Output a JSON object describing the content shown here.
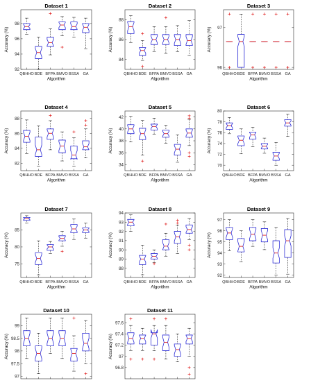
{
  "figure": {
    "colors": {
      "box": "#2b2bd6",
      "median": "#e02020",
      "outlier": "#e02020",
      "whisker": "#000000",
      "axis": "#262626"
    }
  },
  "chart_data": [
    {
      "type": "box",
      "title": "Dataset 1",
      "xlabel": "Algorithm",
      "ylabel": "Accuracy (%)",
      "categories": [
        "QBHHO",
        "BDE",
        "BFPA",
        "BMVO",
        "BSSA",
        "GA"
      ],
      "ylim": [
        92,
        99.8
      ],
      "yticks": [
        92,
        94,
        96,
        98
      ],
      "notched": true,
      "boxes": [
        {
          "min": 96.6,
          "q1": 97.2,
          "median": 97.6,
          "q3": 98.0,
          "max": 98.7,
          "outliers": []
        },
        {
          "min": 92.0,
          "q1": 93.4,
          "median": 94.2,
          "q3": 95.0,
          "max": 96.2,
          "outliers": []
        },
        {
          "min": 93.9,
          "q1": 95.0,
          "median": 95.5,
          "q3": 96.2,
          "max": 97.3,
          "outliers": [
            99.3
          ]
        },
        {
          "min": 96.4,
          "q1": 97.2,
          "median": 97.8,
          "q3": 98.2,
          "max": 98.9,
          "outliers": [
            94.9
          ]
        },
        {
          "min": 96.2,
          "q1": 97.2,
          "median": 97.6,
          "q3": 98.2,
          "max": 98.8,
          "outliers": []
        },
        {
          "min": 94.7,
          "q1": 96.8,
          "median": 97.5,
          "q3": 98.0,
          "max": 98.7,
          "outliers": []
        }
      ]
    },
    {
      "type": "box",
      "title": "Dataset 2",
      "xlabel": "Algorithm",
      "ylabel": "Accuracy (%)",
      "categories": [
        "QBHHO",
        "BDE",
        "BFPA",
        "BMVO",
        "BSSA",
        "GA"
      ],
      "ylim": [
        83,
        89
      ],
      "yticks": [
        84,
        86,
        88
      ],
      "notched": true,
      "boxes": [
        {
          "min": 85.7,
          "q1": 86.6,
          "median": 87.3,
          "q3": 87.8,
          "max": 88.4,
          "outliers": []
        },
        {
          "min": 83.9,
          "q1": 84.4,
          "median": 84.9,
          "q3": 85.2,
          "max": 85.9,
          "outliers": [
            86.6,
            83.3
          ]
        },
        {
          "min": 84.8,
          "q1": 85.5,
          "median": 86.0,
          "q3": 86.5,
          "max": 87.3,
          "outliers": []
        },
        {
          "min": 84.6,
          "q1": 85.5,
          "median": 86.0,
          "q3": 86.5,
          "max": 87.3,
          "outliers": [
            88.2
          ]
        },
        {
          "min": 84.8,
          "q1": 85.4,
          "median": 86.0,
          "q3": 86.5,
          "max": 87.4,
          "outliers": []
        },
        {
          "min": 84.4,
          "q1": 85.4,
          "median": 85.9,
          "q3": 86.5,
          "max": 87.9,
          "outliers": []
        }
      ]
    },
    {
      "type": "box",
      "title": "Dataset 3",
      "xlabel": "Algorithm",
      "ylabel": "Accuracy (%)",
      "categories": [
        "QBHHO",
        "BDE",
        "BFPA",
        "BMVO",
        "BSSA",
        "GA"
      ],
      "ylim": [
        95.95,
        97.45
      ],
      "yticks": [
        96,
        97
      ],
      "notched": true,
      "boxes": [
        {
          "min": 96.65,
          "q1": 96.65,
          "median": 96.65,
          "q3": 96.65,
          "max": 96.65,
          "outliers": [
            97.34,
            96.0
          ]
        },
        {
          "min": 96.0,
          "q1": 96.0,
          "median": 96.65,
          "q3": 96.83,
          "max": 97.34,
          "outliers": []
        },
        {
          "min": 96.65,
          "q1": 96.65,
          "median": 96.65,
          "q3": 96.65,
          "max": 96.65,
          "outliers": [
            97.34,
            96.0
          ]
        },
        {
          "min": 96.65,
          "q1": 96.65,
          "median": 96.65,
          "q3": 96.65,
          "max": 96.65,
          "outliers": [
            97.34,
            96.0
          ]
        },
        {
          "min": 96.65,
          "q1": 96.65,
          "median": 96.65,
          "q3": 96.65,
          "max": 96.65,
          "outliers": [
            97.34,
            96.0
          ]
        },
        {
          "min": 96.65,
          "q1": 96.65,
          "median": 96.65,
          "q3": 96.65,
          "max": 96.65,
          "outliers": [
            97.34,
            96.0
          ]
        }
      ]
    },
    {
      "type": "box",
      "title": "Dataset 4",
      "xlabel": "Algorithm",
      "ylabel": "Accuracy (%)",
      "categories": [
        "QBHHO",
        "BDE",
        "BFPA",
        "BMVO",
        "BSSA",
        "GA"
      ],
      "ylim": [
        81,
        89
      ],
      "yticks": [
        82,
        84,
        86,
        88
      ],
      "notched": true,
      "boxes": [
        {
          "min": 83.3,
          "q1": 84.8,
          "median": 85.6,
          "q3": 86.4,
          "max": 87.8,
          "outliers": []
        },
        {
          "min": 81.6,
          "q1": 82.9,
          "median": 83.8,
          "q3": 85.5,
          "max": 87.0,
          "outliers": []
        },
        {
          "min": 83.8,
          "q1": 85.2,
          "median": 86.0,
          "q3": 86.6,
          "max": 87.7,
          "outliers": [
            88.4
          ]
        },
        {
          "min": 82.3,
          "q1": 83.4,
          "median": 84.3,
          "q3": 85.1,
          "max": 86.2,
          "outliers": []
        },
        {
          "min": 81.6,
          "q1": 82.6,
          "median": 83.1,
          "q3": 84.3,
          "max": 85.4,
          "outliers": [
            86.2
          ]
        },
        {
          "min": 82.7,
          "q1": 83.8,
          "median": 84.2,
          "q3": 85.0,
          "max": 86.6,
          "outliers": [
            87.7,
            87.1
          ]
        }
      ]
    },
    {
      "type": "box",
      "title": "Dataset 5",
      "xlabel": "Algorithm",
      "ylabel": "Accuracy (%)",
      "categories": [
        "QBHHO",
        "BDE",
        "BFPA",
        "BMVO",
        "BSSA",
        "GA"
      ],
      "ylim": [
        33,
        43
      ],
      "yticks": [
        34,
        36,
        38,
        40,
        42
      ],
      "notched": true,
      "boxes": [
        {
          "min": 37.8,
          "q1": 39.2,
          "median": 40.0,
          "q3": 40.7,
          "max": 42.1,
          "outliers": []
        },
        {
          "min": 35.6,
          "q1": 38.2,
          "median": 39.2,
          "q3": 40.1,
          "max": 41.4,
          "outliers": [
            34.6
          ]
        },
        {
          "min": 39.1,
          "q1": 39.8,
          "median": 40.4,
          "q3": 40.8,
          "max": 41.8,
          "outliers": []
        },
        {
          "min": 37.6,
          "q1": 38.6,
          "median": 39.2,
          "q3": 39.8,
          "max": 40.6,
          "outliers": []
        },
        {
          "min": 34.4,
          "q1": 35.6,
          "median": 36.6,
          "q3": 37.4,
          "max": 39.0,
          "outliers": []
        },
        {
          "min": 37.2,
          "q1": 38.6,
          "median": 39.3,
          "q3": 40.0,
          "max": 41.6,
          "outliers": [
            42.2,
            41.8,
            36.0,
            35.4
          ]
        }
      ]
    },
    {
      "type": "box",
      "title": "Dataset 6",
      "xlabel": "Algorithm",
      "ylabel": "Accuracy (%)",
      "categories": [
        "QBHHO",
        "BDE",
        "BFPA",
        "BMVO",
        "BSSA",
        "GA"
      ],
      "ylim": [
        69,
        80
      ],
      "yticks": [
        70,
        72,
        74,
        76,
        78,
        80
      ],
      "notched": true,
      "boxes": [
        {
          "min": 75.8,
          "q1": 76.6,
          "median": 77.3,
          "q3": 77.8,
          "max": 78.8,
          "outliers": []
        },
        {
          "min": 72.1,
          "q1": 73.6,
          "median": 74.6,
          "q3": 75.4,
          "max": 76.7,
          "outliers": []
        },
        {
          "min": 73.4,
          "q1": 74.8,
          "median": 75.6,
          "q3": 76.1,
          "max": 77.0,
          "outliers": []
        },
        {
          "min": 72.2,
          "q1": 73.0,
          "median": 73.5,
          "q3": 74.0,
          "max": 75.0,
          "outliers": []
        },
        {
          "min": 70.0,
          "q1": 70.9,
          "median": 71.7,
          "q3": 72.4,
          "max": 74.2,
          "outliers": []
        },
        {
          "min": 75.3,
          "q1": 77.2,
          "median": 77.8,
          "q3": 78.4,
          "max": 79.4,
          "outliers": []
        }
      ]
    },
    {
      "type": "box",
      "title": "Dataset 7",
      "xlabel": "Algorithm",
      "ylabel": "Accuracy (%)",
      "categories": [
        "QBHHO",
        "BDE",
        "BFPA",
        "BMVO",
        "BSSA",
        "GA"
      ],
      "ylim": [
        71,
        90
      ],
      "yticks": [
        75,
        80,
        85
      ],
      "notched": true,
      "boxes": [
        {
          "min": 87.0,
          "q1": 87.8,
          "median": 88.3,
          "q3": 88.7,
          "max": 89.2,
          "outliers": []
        },
        {
          "min": 71.8,
          "q1": 74.8,
          "median": 76.6,
          "q3": 78.3,
          "max": 81.8,
          "outliers": []
        },
        {
          "min": 78.1,
          "q1": 79.0,
          "median": 80.0,
          "q3": 80.7,
          "max": 81.6,
          "outliers": []
        },
        {
          "min": 80.2,
          "q1": 81.8,
          "median": 82.5,
          "q3": 83.3,
          "max": 84.6,
          "outliers": [
            78.7
          ]
        },
        {
          "min": 82.2,
          "q1": 84.2,
          "median": 85.3,
          "q3": 86.6,
          "max": 88.2,
          "outliers": []
        },
        {
          "min": 82.6,
          "q1": 84.2,
          "median": 85.0,
          "q3": 85.6,
          "max": 87.0,
          "outliers": []
        }
      ]
    },
    {
      "type": "box",
      "title": "Dataset 8",
      "xlabel": "Algorithm",
      "ylabel": "Accuracy (%)",
      "categories": [
        "QBHHO",
        "BDE",
        "BFPA",
        "BMVO",
        "BSSA",
        "GA"
      ],
      "ylim": [
        87,
        94
      ],
      "yticks": [
        88,
        89,
        90,
        91,
        92,
        93,
        94
      ],
      "notched": true,
      "boxes": [
        {
          "min": 92.0,
          "q1": 92.6,
          "median": 93.0,
          "q3": 93.3,
          "max": 93.8,
          "outliers": []
        },
        {
          "min": 87.3,
          "q1": 88.4,
          "median": 89.0,
          "q3": 89.4,
          "max": 90.5,
          "outliers": []
        },
        {
          "min": 88.6,
          "q1": 89.0,
          "median": 89.3,
          "q3": 89.6,
          "max": 90.0,
          "outliers": [
            88.5
          ]
        },
        {
          "min": 89.3,
          "q1": 90.0,
          "median": 90.4,
          "q3": 91.1,
          "max": 91.8,
          "outliers": [
            92.8
          ]
        },
        {
          "min": 89.6,
          "q1": 90.7,
          "median": 91.4,
          "q3": 92.0,
          "max": 92.7,
          "outliers": [
            92.9,
            93.2
          ]
        },
        {
          "min": 91.1,
          "q1": 91.8,
          "median": 92.2,
          "q3": 92.7,
          "max": 93.4,
          "outliers": [
            90.5,
            90.0
          ]
        }
      ]
    },
    {
      "type": "box",
      "title": "Dataset 9",
      "xlabel": "Algorithm",
      "ylabel": "Accuracy (%)",
      "categories": [
        "QBHHO",
        "BDE",
        "BFPA",
        "BMVO",
        "BSSA",
        "GA"
      ],
      "ylim": [
        91.8,
        97.6
      ],
      "yticks": [
        92,
        93,
        94,
        95,
        96,
        97
      ],
      "notched": true,
      "boxes": [
        {
          "min": 94.2,
          "q1": 95.2,
          "median": 95.8,
          "q3": 96.3,
          "max": 97.0,
          "outliers": []
        },
        {
          "min": 93.2,
          "q1": 94.1,
          "median": 94.6,
          "q3": 95.3,
          "max": 96.0,
          "outliers": []
        },
        {
          "min": 94.6,
          "q1": 95.1,
          "median": 95.7,
          "q3": 96.3,
          "max": 97.0,
          "outliers": []
        },
        {
          "min": 94.3,
          "q1": 95.0,
          "median": 95.6,
          "q3": 96.2,
          "max": 96.8,
          "outliers": []
        },
        {
          "min": 92.0,
          "q1": 93.1,
          "median": 94.0,
          "q3": 95.1,
          "max": 96.3,
          "outliers": []
        },
        {
          "min": 92.1,
          "q1": 93.6,
          "median": 95.1,
          "q3": 96.1,
          "max": 97.1,
          "outliers": []
        }
      ]
    },
    {
      "type": "box",
      "title": "Dataset 10",
      "xlabel": "Algorithm",
      "ylabel": "Accuracy (%)",
      "categories": [
        "QBHHO",
        "BDE",
        "BFPA",
        "BMVO",
        "BSSA",
        "GA"
      ],
      "ylim": [
        96.9,
        99.45
      ],
      "yticks": [
        97,
        97.5,
        98,
        98.5,
        99
      ],
      "notched": true,
      "boxes": [
        {
          "min": 97.7,
          "q1": 98.2,
          "median": 98.5,
          "q3": 98.8,
          "max": 99.3,
          "outliers": []
        },
        {
          "min": 97.1,
          "q1": 97.6,
          "median": 97.9,
          "q3": 98.2,
          "max": 98.7,
          "outliers": []
        },
        {
          "min": 97.9,
          "q1": 98.2,
          "median": 98.5,
          "q3": 98.8,
          "max": 99.3,
          "outliers": []
        },
        {
          "min": 97.7,
          "q1": 98.2,
          "median": 98.5,
          "q3": 98.8,
          "max": 99.3,
          "outliers": []
        },
        {
          "min": 97.2,
          "q1": 97.6,
          "median": 97.9,
          "q3": 98.1,
          "max": 98.6,
          "outliers": [
            99.3
          ]
        },
        {
          "min": 97.5,
          "q1": 98.0,
          "median": 98.3,
          "q3": 98.7,
          "max": 99.2,
          "outliers": [
            97.1
          ]
        }
      ]
    },
    {
      "type": "box",
      "title": "Dataset 11",
      "xlabel": "Algorithm",
      "ylabel": "Accuracy (%)",
      "categories": [
        "QBHHO",
        "BDE",
        "BFPA",
        "BMVO",
        "BSSA",
        "GA"
      ],
      "ylim": [
        96.6,
        97.75
      ],
      "yticks": [
        96.8,
        97,
        97.2,
        97.4,
        97.6
      ],
      "notched": true,
      "boxes": [
        {
          "min": 97.1,
          "q1": 97.22,
          "median": 97.32,
          "q3": 97.42,
          "max": 97.55,
          "outliers": [
            97.67,
            96.95
          ]
        },
        {
          "min": 97.1,
          "q1": 97.22,
          "median": 97.32,
          "q3": 97.38,
          "max": 97.5,
          "outliers": [
            96.95
          ]
        },
        {
          "min": 97.1,
          "q1": 97.2,
          "median": 97.4,
          "q3": 97.42,
          "max": 97.55,
          "outliers": [
            97.67,
            96.95
          ]
        },
        {
          "min": 96.95,
          "q1": 97.1,
          "median": 97.25,
          "q3": 97.38,
          "max": 97.55,
          "outliers": [
            97.67
          ]
        },
        {
          "min": 96.9,
          "q1": 97.0,
          "median": 97.12,
          "q3": 97.22,
          "max": 97.4,
          "outliers": []
        },
        {
          "min": 97.0,
          "q1": 97.22,
          "median": 97.32,
          "q3": 97.38,
          "max": 97.5,
          "outliers": [
            96.8,
            96.68
          ]
        }
      ]
    }
  ]
}
